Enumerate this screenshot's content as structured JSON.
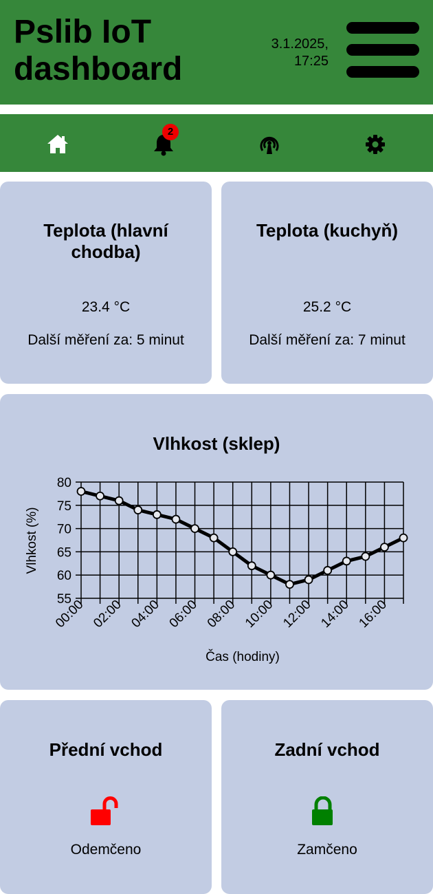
{
  "header": {
    "title_line1": "Pslib IoT",
    "title_line2": "dashboard",
    "date": "3.1.2025,",
    "time": "17:25"
  },
  "nav": {
    "items": [
      {
        "icon": "home-icon"
      },
      {
        "icon": "bell-icon",
        "badge": "2"
      },
      {
        "icon": "broadcast-icon"
      },
      {
        "icon": "gear-icon"
      }
    ]
  },
  "temp_hall": {
    "title_line1": "Teplota (hlavní",
    "title_line2": "chodba)",
    "value": "23.4 °C",
    "next": "Další měření za: 5 minut"
  },
  "temp_kitchen": {
    "title": "Teplota (kuchyň)",
    "value": "25.2 °C",
    "next": "Další měření za: 7 minut"
  },
  "humidity": {
    "title": "Vlhkost (sklep)"
  },
  "front_door": {
    "title": "Přední vchod",
    "status": "Odemčeno",
    "color": "#ff0000"
  },
  "back_door": {
    "title": "Zadní vchod",
    "status": "Zamčeno",
    "color": "#008000"
  },
  "chart_data": {
    "type": "line",
    "title": "Vlhkost (sklep)",
    "xlabel": "Čas (hodiny)",
    "ylabel": "Vlhkost (%)",
    "x": [
      "00:00",
      "01:00",
      "02:00",
      "03:00",
      "04:00",
      "05:00",
      "06:00",
      "07:00",
      "08:00",
      "09:00",
      "10:00",
      "11:00",
      "12:00",
      "13:00",
      "14:00",
      "15:00",
      "16:00",
      "17:00"
    ],
    "xtick_labels": [
      "00:00",
      "02:00",
      "04:00",
      "06:00",
      "08:00",
      "10:00",
      "12:00",
      "14:00",
      "16:00"
    ],
    "values": [
      78,
      77,
      76,
      74,
      73,
      72,
      70,
      68,
      65,
      62,
      60,
      58,
      59,
      61,
      63,
      64,
      66,
      68
    ],
    "ylim": [
      55,
      80
    ],
    "yticks": [
      55,
      60,
      65,
      70,
      75,
      80
    ],
    "grid": true
  }
}
